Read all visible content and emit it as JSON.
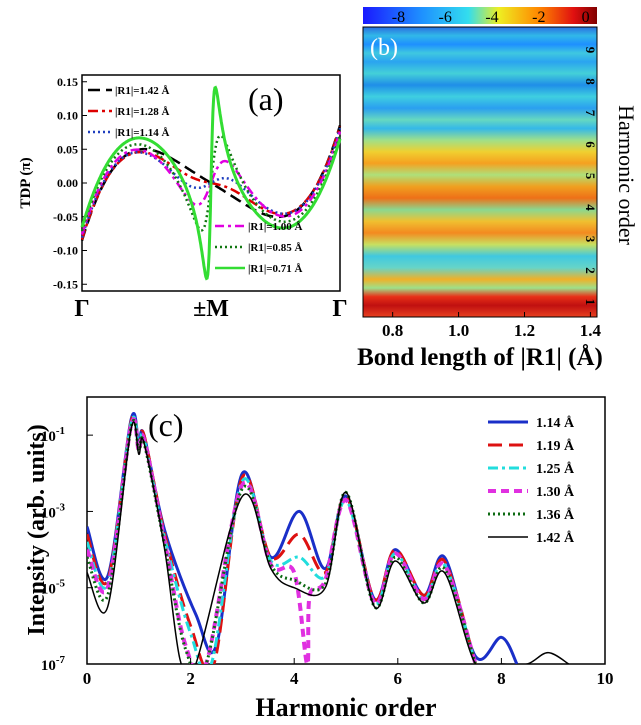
{
  "chart_data": [
    {
      "panel": "(a)",
      "type": "line",
      "ylabel": "TDP (π)",
      "x_tick_labels": [
        "Γ",
        "±M",
        "Γ"
      ],
      "ylim": [
        -0.16,
        0.16
      ],
      "y_ticks": [
        "0.15",
        "0.10",
        "0.05",
        "0.00",
        "-0.05",
        "-0.10",
        "-0.15"
      ],
      "legend_top": [
        "|R1|=1.42 Å",
        "|R1|=1.28 Å",
        "|R1|=1.14 Å"
      ],
      "legend_bottom": [
        "|R1|=1.00 Å",
        "|R1|=0.85 Å",
        "|R1|=0.71 Å"
      ],
      "series": [
        {
          "name": "|R1|=1.42 Å",
          "color": "#000000",
          "dash": "12 6",
          "peak": 0.036,
          "width": 0.55
        },
        {
          "name": "|R1|=1.28 Å",
          "color": "#dd0000",
          "dash": "10 4 3 4",
          "peak": 0.042,
          "width": 0.4
        },
        {
          "name": "|R1|=1.14 Å",
          "color": "#1f3fbf",
          "dash": "2 3",
          "peak": 0.05,
          "width": 0.28
        },
        {
          "name": "|R1|=1.00 Å",
          "color": "#e000e0",
          "dash": "9 4 3 4",
          "peak": 0.065,
          "width": 0.17
        },
        {
          "name": "|R1|=0.85 Å",
          "color": "#117711",
          "dash": "2 3",
          "peak": 0.09,
          "width": 0.09
        },
        {
          "name": "|R1|=0.71 Å",
          "color": "#33dd33",
          "dash": "",
          "peak": 0.15,
          "width": 0.035
        }
      ]
    },
    {
      "panel": "(b)",
      "type": "heatmap",
      "xlabel": "Bond length of |R1| (Å)",
      "ylabel": "Harmonic order",
      "xlim": [
        0.71,
        1.42
      ],
      "x_ticks": [
        "0.8",
        "1.0",
        "1.2",
        "1.4"
      ],
      "colorbar_ticks": [
        "-8",
        "-6",
        "-4",
        "-2",
        "0"
      ],
      "order_labels": [
        "1",
        "2",
        "3",
        "4",
        "5",
        "6",
        "7",
        "8",
        "9"
      ]
    },
    {
      "panel": "(c)",
      "type": "line",
      "xlabel": "Harmonic order",
      "ylabel": "Intensity (arb. units)",
      "xlim": [
        0,
        10
      ],
      "x_ticks": [
        "0",
        "2",
        "4",
        "6",
        "8",
        "10"
      ],
      "ylim_log10": [
        -7,
        0
      ],
      "y_ticks": [
        "10-1",
        "10-3",
        "10-5",
        "10-7"
      ],
      "series": [
        {
          "name": "1.14 Å",
          "color": "#1a2fc8",
          "dash": "",
          "width": 3,
          "x": [
            0,
            0.4,
            0.85,
            1.0,
            1.1,
            1.5,
            2.1,
            2.5,
            3.0,
            3.55,
            4.1,
            4.6,
            5.0,
            5.55,
            5.95,
            6.5,
            6.9,
            7.5,
            8.0,
            8.3
          ],
          "y": [
            -3.4,
            -4.7,
            -0.6,
            -1.2,
            -1.0,
            -3.5,
            -5.7,
            -6.5,
            -2.0,
            -4.2,
            -3.0,
            -4.5,
            -2.6,
            -5.3,
            -4.0,
            -5.2,
            -4.2,
            -6.8,
            -6.3,
            -7.0
          ]
        },
        {
          "name": "1.19 Å",
          "color": "#dd1111",
          "dash": "14 7",
          "width": 3,
          "x": [
            0,
            0.4,
            0.85,
            1.0,
            1.1,
            1.5,
            2.0,
            2.45,
            3.0,
            3.55,
            4.1,
            4.6,
            5.0,
            5.55,
            5.95,
            6.5,
            6.9,
            7.5
          ],
          "y": [
            -3.6,
            -4.8,
            -0.65,
            -1.3,
            -1.0,
            -3.6,
            -6.0,
            -7.0,
            -2.1,
            -4.2,
            -3.6,
            -4.6,
            -2.6,
            -5.3,
            -4.0,
            -5.2,
            -4.3,
            -7.0
          ]
        },
        {
          "name": "1.25 Å",
          "color": "#22dddd",
          "dash": "10 4 3 4",
          "width": 3,
          "x": [
            0,
            0.4,
            0.85,
            1.0,
            1.1,
            1.5,
            2.0,
            2.4,
            3.0,
            3.55,
            4.1,
            4.6,
            5.0,
            5.55,
            5.95,
            6.5,
            6.9,
            7.5
          ],
          "y": [
            -3.8,
            -4.9,
            -0.7,
            -1.3,
            -1.1,
            -3.7,
            -6.2,
            -7.0,
            -2.2,
            -4.3,
            -4.2,
            -4.7,
            -2.7,
            -5.4,
            -4.1,
            -5.3,
            -4.4,
            -7.0
          ]
        },
        {
          "name": "1.30 Å",
          "color": "#e030e0",
          "dash": "8 5",
          "width": 4,
          "x": [
            0,
            0.4,
            0.85,
            1.0,
            1.1,
            1.5,
            1.9,
            2.3,
            3.0,
            3.55,
            4.0,
            4.25,
            4.3,
            4.6,
            5.0,
            5.55,
            5.95,
            6.5,
            6.9,
            7.5
          ],
          "y": [
            -4.0,
            -5.0,
            -0.75,
            -1.4,
            -1.1,
            -3.8,
            -6.5,
            -7.0,
            -2.3,
            -4.4,
            -4.6,
            -7.0,
            -5.2,
            -4.8,
            -2.7,
            -5.4,
            -4.1,
            -5.3,
            -4.4,
            -7.0
          ]
        },
        {
          "name": "1.36 Å",
          "color": "#0c6a12",
          "dash": "2 3",
          "width": 3,
          "x": [
            0,
            0.4,
            0.85,
            1.0,
            1.1,
            1.5,
            1.9,
            2.3,
            3.0,
            3.55,
            4.0,
            4.6,
            5.0,
            5.55,
            5.95,
            6.5,
            6.9,
            7.5
          ],
          "y": [
            -4.2,
            -5.2,
            -0.8,
            -1.4,
            -1.2,
            -3.9,
            -6.6,
            -7.0,
            -2.4,
            -4.4,
            -4.8,
            -4.9,
            -2.5,
            -5.5,
            -4.2,
            -5.4,
            -4.5,
            -7.0
          ]
        },
        {
          "name": "1.42 Å",
          "color": "#000000",
          "dash": "",
          "width": 1.5,
          "x": [
            0,
            0.4,
            0.85,
            1.0,
            1.1,
            1.5,
            1.8,
            2.1,
            3.0,
            3.55,
            4.0,
            4.6,
            5.0,
            5.55,
            5.95,
            6.5,
            6.9,
            7.5,
            8.0,
            8.5,
            8.9,
            9.3
          ],
          "y": [
            -4.6,
            -5.5,
            -0.85,
            -1.5,
            -1.2,
            -4.0,
            -6.9,
            -7.0,
            -2.6,
            -4.5,
            -5.0,
            -5.0,
            -2.5,
            -5.5,
            -4.3,
            -5.4,
            -4.6,
            -7.0,
            -7.0,
            -7.0,
            -6.7,
            -7.0
          ]
        }
      ]
    }
  ]
}
